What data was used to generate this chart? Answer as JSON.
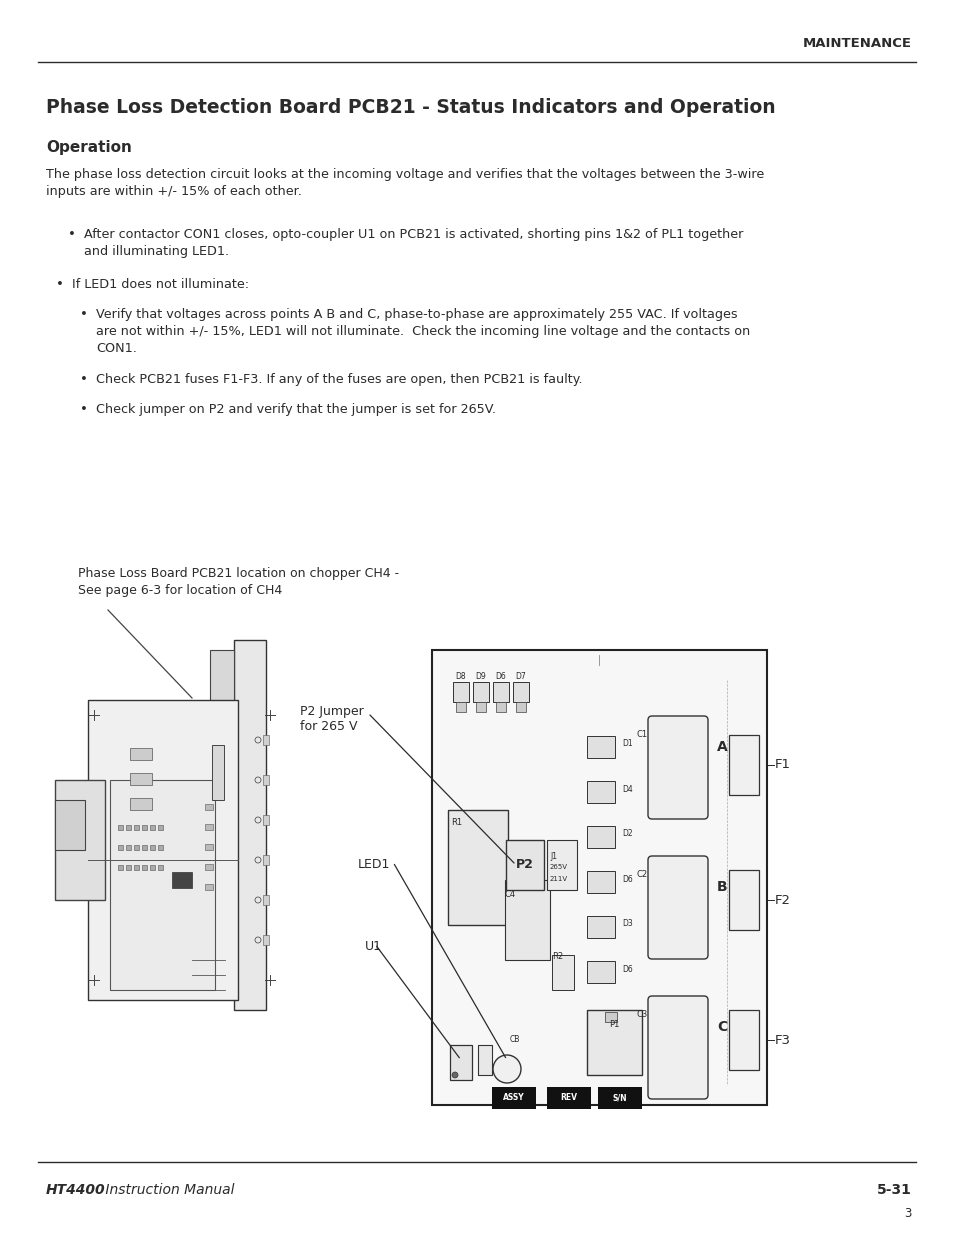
{
  "bg_color": "#ffffff",
  "text_color": "#2b2b2b",
  "header_text": "MAINTENANCE",
  "title": "Phase Loss Detection Board PCB21 - Status Indicators and Operation",
  "section_heading": "Operation",
  "paragraph": "The phase loss detection circuit looks at the incoming voltage and verifies that the voltages between the 3-wire\ninputs are within +/- 15% of each other.",
  "bullet1": "After contactor CON1 closes, opto-coupler U1 on PCB21 is activated, shorting pins 1&2 of PL1 together\nand illuminating LED1.",
  "bullet2": "If LED1 does not illuminate:",
  "bullet3": "Verify that voltages across points A B and C, phase-to-phase are approximately 255 VAC. If voltages\nare not within +/- 15%, LED1 will not illuminate.  Check the incoming line voltage and the contacts on\nCON1.",
  "bullet4": "Check PCB21 fuses F1-F3. If any of the fuses are open, then PCB21 is faulty.",
  "bullet5": "Check jumper on P2 and verify that the jumper is set for 265V.",
  "caption_line1": "Phase Loss Board PCB21 location on chopper CH4 -",
  "caption_line2": "See page 6-3 for location of CH4",
  "p2_label": "P2 Jumper\nfor 265 V",
  "led1_label": "LED1",
  "u1_label": "U1",
  "footer_left_bold": "HT4400",
  "footer_left_normal": " Instruction Manual",
  "footer_right": "5-31",
  "footer_page": "3"
}
